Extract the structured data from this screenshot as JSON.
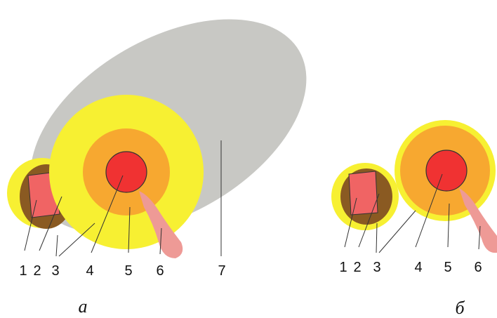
{
  "panels": [
    {
      "labels": [
        "1",
        "2",
        "3",
        "4",
        "5",
        "6",
        "7"
      ],
      "caption": "а"
    },
    {
      "labels": [
        "1",
        "2",
        "3",
        "4",
        "5",
        "6"
      ],
      "caption": "б"
    }
  ]
}
